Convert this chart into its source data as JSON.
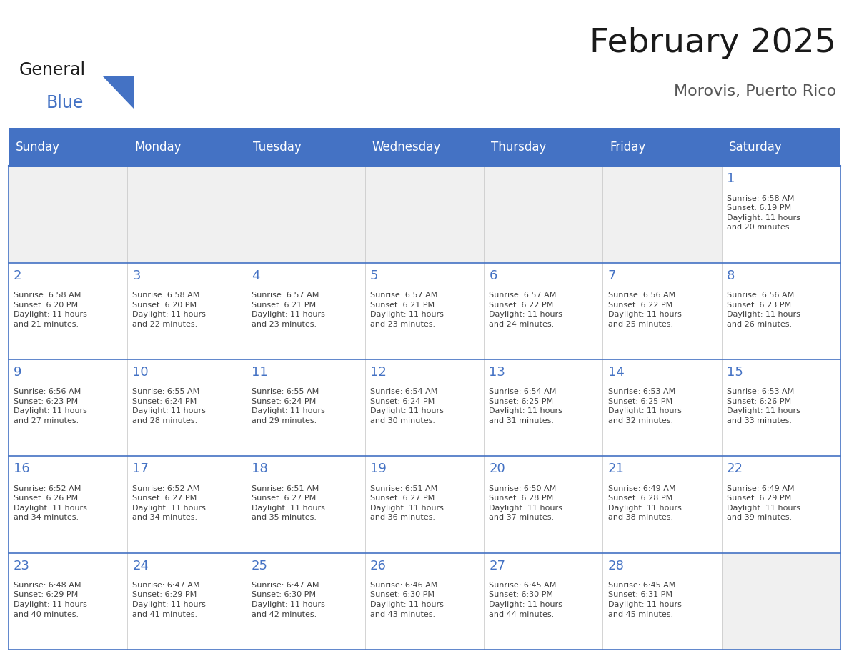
{
  "title": "February 2025",
  "subtitle": "Morovis, Puerto Rico",
  "header_bg_color": "#4472C4",
  "header_text_color": "#FFFFFF",
  "cell_bg_color": "#FFFFFF",
  "cell_border_color": "#4472C4",
  "day_number_color": "#4472C4",
  "cell_text_color": "#404040",
  "background_color": "#FFFFFF",
  "days_of_week": [
    "Sunday",
    "Monday",
    "Tuesday",
    "Wednesday",
    "Thursday",
    "Friday",
    "Saturday"
  ],
  "logo_text1": "General",
  "logo_text2": "Blue",
  "logo_triangle_color": "#4472C4",
  "calendar_data": [
    [
      {
        "day": "",
        "info": ""
      },
      {
        "day": "",
        "info": ""
      },
      {
        "day": "",
        "info": ""
      },
      {
        "day": "",
        "info": ""
      },
      {
        "day": "",
        "info": ""
      },
      {
        "day": "",
        "info": ""
      },
      {
        "day": "1",
        "info": "Sunrise: 6:58 AM\nSunset: 6:19 PM\nDaylight: 11 hours\nand 20 minutes."
      }
    ],
    [
      {
        "day": "2",
        "info": "Sunrise: 6:58 AM\nSunset: 6:20 PM\nDaylight: 11 hours\nand 21 minutes."
      },
      {
        "day": "3",
        "info": "Sunrise: 6:58 AM\nSunset: 6:20 PM\nDaylight: 11 hours\nand 22 minutes."
      },
      {
        "day": "4",
        "info": "Sunrise: 6:57 AM\nSunset: 6:21 PM\nDaylight: 11 hours\nand 23 minutes."
      },
      {
        "day": "5",
        "info": "Sunrise: 6:57 AM\nSunset: 6:21 PM\nDaylight: 11 hours\nand 23 minutes."
      },
      {
        "day": "6",
        "info": "Sunrise: 6:57 AM\nSunset: 6:22 PM\nDaylight: 11 hours\nand 24 minutes."
      },
      {
        "day": "7",
        "info": "Sunrise: 6:56 AM\nSunset: 6:22 PM\nDaylight: 11 hours\nand 25 minutes."
      },
      {
        "day": "8",
        "info": "Sunrise: 6:56 AM\nSunset: 6:23 PM\nDaylight: 11 hours\nand 26 minutes."
      }
    ],
    [
      {
        "day": "9",
        "info": "Sunrise: 6:56 AM\nSunset: 6:23 PM\nDaylight: 11 hours\nand 27 minutes."
      },
      {
        "day": "10",
        "info": "Sunrise: 6:55 AM\nSunset: 6:24 PM\nDaylight: 11 hours\nand 28 minutes."
      },
      {
        "day": "11",
        "info": "Sunrise: 6:55 AM\nSunset: 6:24 PM\nDaylight: 11 hours\nand 29 minutes."
      },
      {
        "day": "12",
        "info": "Sunrise: 6:54 AM\nSunset: 6:24 PM\nDaylight: 11 hours\nand 30 minutes."
      },
      {
        "day": "13",
        "info": "Sunrise: 6:54 AM\nSunset: 6:25 PM\nDaylight: 11 hours\nand 31 minutes."
      },
      {
        "day": "14",
        "info": "Sunrise: 6:53 AM\nSunset: 6:25 PM\nDaylight: 11 hours\nand 32 minutes."
      },
      {
        "day": "15",
        "info": "Sunrise: 6:53 AM\nSunset: 6:26 PM\nDaylight: 11 hours\nand 33 minutes."
      }
    ],
    [
      {
        "day": "16",
        "info": "Sunrise: 6:52 AM\nSunset: 6:26 PM\nDaylight: 11 hours\nand 34 minutes."
      },
      {
        "day": "17",
        "info": "Sunrise: 6:52 AM\nSunset: 6:27 PM\nDaylight: 11 hours\nand 34 minutes."
      },
      {
        "day": "18",
        "info": "Sunrise: 6:51 AM\nSunset: 6:27 PM\nDaylight: 11 hours\nand 35 minutes."
      },
      {
        "day": "19",
        "info": "Sunrise: 6:51 AM\nSunset: 6:27 PM\nDaylight: 11 hours\nand 36 minutes."
      },
      {
        "day": "20",
        "info": "Sunrise: 6:50 AM\nSunset: 6:28 PM\nDaylight: 11 hours\nand 37 minutes."
      },
      {
        "day": "21",
        "info": "Sunrise: 6:49 AM\nSunset: 6:28 PM\nDaylight: 11 hours\nand 38 minutes."
      },
      {
        "day": "22",
        "info": "Sunrise: 6:49 AM\nSunset: 6:29 PM\nDaylight: 11 hours\nand 39 minutes."
      }
    ],
    [
      {
        "day": "23",
        "info": "Sunrise: 6:48 AM\nSunset: 6:29 PM\nDaylight: 11 hours\nand 40 minutes."
      },
      {
        "day": "24",
        "info": "Sunrise: 6:47 AM\nSunset: 6:29 PM\nDaylight: 11 hours\nand 41 minutes."
      },
      {
        "day": "25",
        "info": "Sunrise: 6:47 AM\nSunset: 6:30 PM\nDaylight: 11 hours\nand 42 minutes."
      },
      {
        "day": "26",
        "info": "Sunrise: 6:46 AM\nSunset: 6:30 PM\nDaylight: 11 hours\nand 43 minutes."
      },
      {
        "day": "27",
        "info": "Sunrise: 6:45 AM\nSunset: 6:30 PM\nDaylight: 11 hours\nand 44 minutes."
      },
      {
        "day": "28",
        "info": "Sunrise: 6:45 AM\nSunset: 6:31 PM\nDaylight: 11 hours\nand 45 minutes."
      },
      {
        "day": "",
        "info": ""
      }
    ]
  ]
}
